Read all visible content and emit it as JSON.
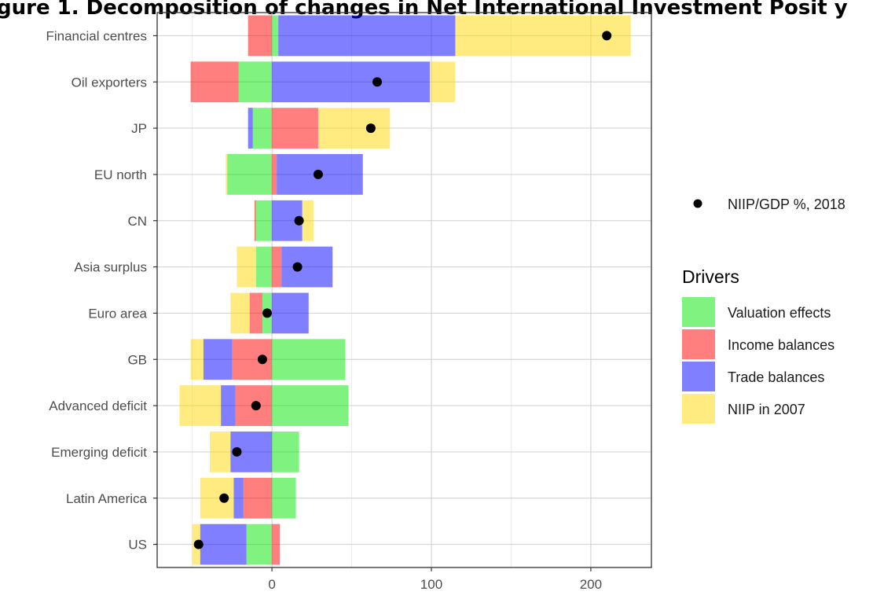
{
  "chart_data": {
    "type": "bar",
    "orientation": "horizontal",
    "stacked": true,
    "title": "gure 1. Decomposition of changes in Net International Investment Posit   y",
    "xlabel": "",
    "ylabel": "",
    "xlim": [
      -72,
      238
    ],
    "xticks": [
      0,
      100,
      200
    ],
    "grid": true,
    "categories": [
      "Financial centres",
      "Oil exporters",
      "JP",
      "EU north",
      "CN",
      "Asia surplus",
      "Euro area",
      "GB",
      "Advanced deficit",
      "Emerging deficit",
      "Latin America",
      "US"
    ],
    "series": [
      {
        "name": "Valuation effects",
        "color": "#00e600",
        "values": [
          4,
          -21,
          -12,
          -28,
          -10,
          -10,
          -6,
          46,
          48,
          17,
          15,
          -16
        ]
      },
      {
        "name": "Income balances",
        "color": "#ff0000",
        "values": [
          -15,
          -30,
          29,
          3,
          -1,
          6,
          -8,
          -25,
          -23,
          0,
          -18,
          5
        ]
      },
      {
        "name": "Trade balances",
        "color": "#0000ff",
        "values": [
          111,
          99,
          -3,
          54,
          19,
          32,
          23,
          -18,
          -9,
          -26,
          -6,
          -29
        ]
      },
      {
        "name": "NIIP in 2007",
        "color": "#ffd700",
        "values": [
          110,
          16,
          45,
          -1,
          7,
          -12,
          -12,
          -8,
          -26,
          -13,
          -21,
          -5
        ]
      }
    ],
    "points": {
      "name": "NIIP/GDP %, 2018",
      "color": "#000000",
      "values": [
        210,
        66,
        62,
        29,
        17,
        16,
        -3,
        -6,
        -10,
        -22,
        -30,
        -46
      ]
    },
    "legend": {
      "title": "Drivers",
      "placement": "right"
    }
  }
}
